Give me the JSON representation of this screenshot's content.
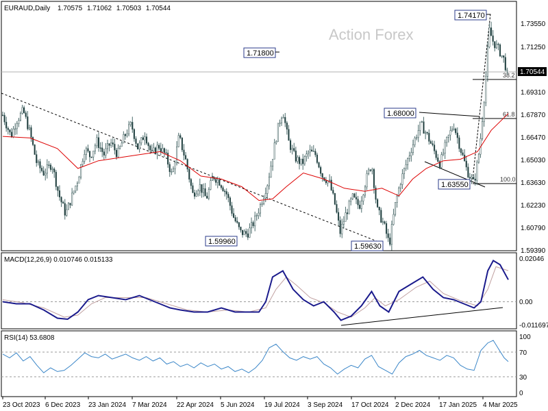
{
  "chart_data": {
    "type": "candlestick",
    "watermark": "Action Forex",
    "price_panel": {
      "title": "EURAUD,Daily",
      "ohlc": [
        "1.70575",
        "1.71062",
        "1.70503",
        "1.70544"
      ],
      "last_price": "1.70544",
      "ylim": [
        1.5939,
        1.7557
      ],
      "y_ticks": [
        "1.73550",
        "1.71250",
        "1.69310",
        "1.67870",
        "1.66470",
        "1.65030",
        "1.63630",
        "1.62230",
        "1.60790",
        "1.59390"
      ],
      "annotations": [
        "1.74170",
        "1.71800",
        "1.68000",
        "1.63550",
        "1.59960",
        "1.59630"
      ],
      "fib_levels": [
        {
          "label": "38.2",
          "value": 1.699
        },
        {
          "label": "61.8",
          "value": 1.678
        },
        {
          "label": "100.0",
          "value": 1.636
        }
      ],
      "moving_average_color": "#dd0000"
    },
    "macd_panel": {
      "title": "MACD(12,26,9) 0.010746 0.015133",
      "ylim": [
        -0.0125,
        0.0228
      ],
      "y_ticks": [
        "0.02046",
        "0.00",
        "-0.011697"
      ],
      "main_line_color": "#1a1a8c",
      "signal_line_color": "#c0a0a0"
    },
    "rsi_panel": {
      "title": "RSI(14) 53.6808",
      "ylim": [
        0,
        100
      ],
      "y_ticks": [
        "100",
        "70",
        "30",
        "0"
      ],
      "line_color": "#3a86c8"
    },
    "x_ticks": [
      "23 Oct 2023",
      "6 Dec 2023",
      "23 Jan 2024",
      "7 Mar 2024",
      "22 Apr 2024",
      "5 Jun 2024",
      "19 Jul 2024",
      "3 Sep 2024",
      "17 Oct 2024",
      "2 Dec 2024",
      "17 Jan 2025",
      "4 Mar 2025"
    ],
    "close_path": [
      [
        0,
        1.682
      ],
      [
        12,
        1.668
      ],
      [
        20,
        1.678
      ],
      [
        30,
        1.685
      ],
      [
        40,
        1.67
      ],
      [
        50,
        1.65
      ],
      [
        60,
        1.644
      ],
      [
        72,
        1.65
      ],
      [
        82,
        1.63
      ],
      [
        92,
        1.617
      ],
      [
        100,
        1.627
      ],
      [
        110,
        1.64
      ],
      [
        120,
        1.66
      ],
      [
        128,
        1.655
      ],
      [
        138,
        1.665
      ],
      [
        148,
        1.656
      ],
      [
        158,
        1.664
      ],
      [
        168,
        1.656
      ],
      [
        178,
        1.668
      ],
      [
        188,
        1.676
      ],
      [
        198,
        1.66
      ],
      [
        208,
        1.67
      ],
      [
        218,
        1.656
      ],
      [
        228,
        1.662
      ],
      [
        238,
        1.656
      ],
      [
        248,
        1.642
      ],
      [
        258,
        1.668
      ],
      [
        268,
        1.652
      ],
      [
        278,
        1.63
      ],
      [
        288,
        1.636
      ],
      [
        298,
        1.627
      ],
      [
        308,
        1.642
      ],
      [
        318,
        1.638
      ],
      [
        328,
        1.63
      ],
      [
        338,
        1.615
      ],
      [
        348,
        1.605
      ],
      [
        358,
        1.604
      ],
      [
        368,
        1.612
      ],
      [
        378,
        1.624
      ],
      [
        388,
        1.638
      ],
      [
        398,
        1.662
      ],
      [
        404,
        1.676
      ],
      [
        410,
        1.685
      ],
      [
        418,
        1.665
      ],
      [
        428,
        1.654
      ],
      [
        438,
        1.65
      ],
      [
        448,
        1.658
      ],
      [
        458,
        1.656
      ],
      [
        468,
        1.642
      ],
      [
        478,
        1.638
      ],
      [
        486,
        1.624
      ],
      [
        494,
        1.605
      ],
      [
        502,
        1.617
      ],
      [
        512,
        1.628
      ],
      [
        522,
        1.622
      ],
      [
        532,
        1.64
      ],
      [
        540,
        1.65
      ],
      [
        548,
        1.62
      ],
      [
        558,
        1.61
      ],
      [
        566,
        1.597
      ],
      [
        574,
        1.622
      ],
      [
        582,
        1.638
      ],
      [
        592,
        1.652
      ],
      [
        602,
        1.665
      ],
      [
        612,
        1.676
      ],
      [
        620,
        1.67
      ],
      [
        630,
        1.66
      ],
      [
        640,
        1.65
      ],
      [
        650,
        1.665
      ],
      [
        660,
        1.676
      ],
      [
        670,
        1.66
      ],
      [
        680,
        1.645
      ],
      [
        690,
        1.637
      ],
      [
        698,
        1.66
      ],
      [
        706,
        1.7
      ],
      [
        712,
        1.738
      ],
      [
        718,
        1.73
      ],
      [
        726,
        1.725
      ],
      [
        734,
        1.718
      ],
      [
        740,
        1.7054
      ]
    ],
    "ma_path": [
      [
        0,
        1.668
      ],
      [
        40,
        1.667
      ],
      [
        80,
        1.66
      ],
      [
        110,
        1.647
      ],
      [
        140,
        1.652
      ],
      [
        170,
        1.654
      ],
      [
        200,
        1.656
      ],
      [
        230,
        1.658
      ],
      [
        260,
        1.652
      ],
      [
        290,
        1.642
      ],
      [
        320,
        1.64
      ],
      [
        350,
        1.635
      ],
      [
        375,
        1.626
      ],
      [
        395,
        1.627
      ],
      [
        415,
        1.635
      ],
      [
        440,
        1.644
      ],
      [
        470,
        1.64
      ],
      [
        500,
        1.634
      ],
      [
        530,
        1.632
      ],
      [
        555,
        1.634
      ],
      [
        580,
        1.629
      ],
      [
        600,
        1.64
      ],
      [
        620,
        1.647
      ],
      [
        645,
        1.652
      ],
      [
        670,
        1.653
      ],
      [
        695,
        1.658
      ],
      [
        715,
        1.672
      ],
      [
        740,
        1.683
      ]
    ],
    "macd_path": [
      [
        0,
        0.0
      ],
      [
        20,
        -0.001
      ],
      [
        40,
        -0.001
      ],
      [
        60,
        -0.004
      ],
      [
        80,
        -0.008
      ],
      [
        95,
        -0.0085
      ],
      [
        110,
        -0.005
      ],
      [
        125,
        0.001
      ],
      [
        140,
        0.003
      ],
      [
        160,
        0.002
      ],
      [
        180,
        0.001
      ],
      [
        200,
        0.003
      ],
      [
        215,
        0.001
      ],
      [
        230,
        -0.001
      ],
      [
        245,
        -0.003
      ],
      [
        260,
        -0.004
      ],
      [
        280,
        -0.005
      ],
      [
        300,
        -0.005
      ],
      [
        320,
        -0.003
      ],
      [
        340,
        -0.005
      ],
      [
        360,
        -0.005
      ],
      [
        375,
        -0.005
      ],
      [
        385,
        0.0
      ],
      [
        395,
        0.012
      ],
      [
        410,
        0.015
      ],
      [
        425,
        0.006
      ],
      [
        440,
        0.001
      ],
      [
        455,
        -0.002
      ],
      [
        470,
        0.0
      ],
      [
        485,
        -0.005
      ],
      [
        495,
        -0.009
      ],
      [
        510,
        -0.007
      ],
      [
        525,
        -0.002
      ],
      [
        540,
        0.005
      ],
      [
        552,
        -0.002
      ],
      [
        565,
        -0.005
      ],
      [
        580,
        0.005
      ],
      [
        600,
        0.009
      ],
      [
        615,
        0.012
      ],
      [
        630,
        0.006
      ],
      [
        645,
        0.002
      ],
      [
        660,
        0.001
      ],
      [
        675,
        -0.001
      ],
      [
        690,
        -0.003
      ],
      [
        700,
        0.0
      ],
      [
        710,
        0.015
      ],
      [
        718,
        0.02
      ],
      [
        728,
        0.018
      ],
      [
        740,
        0.0107
      ]
    ],
    "signal_path": [
      [
        0,
        0.001
      ],
      [
        30,
        -0.0005
      ],
      [
        60,
        -0.003
      ],
      [
        90,
        -0.0075
      ],
      [
        110,
        -0.0065
      ],
      [
        130,
        -0.001
      ],
      [
        150,
        0.002
      ],
      [
        180,
        0.002
      ],
      [
        210,
        0.002
      ],
      [
        240,
        -0.001
      ],
      [
        270,
        -0.004
      ],
      [
        300,
        -0.005
      ],
      [
        330,
        -0.004
      ],
      [
        360,
        -0.005
      ],
      [
        385,
        -0.003
      ],
      [
        400,
        0.006
      ],
      [
        415,
        0.012
      ],
      [
        430,
        0.008
      ],
      [
        450,
        0.002
      ],
      [
        470,
        -0.0005
      ],
      [
        490,
        -0.005
      ],
      [
        510,
        -0.0075
      ],
      [
        530,
        -0.003
      ],
      [
        545,
        0.002
      ],
      [
        560,
        -0.002
      ],
      [
        580,
        0.001
      ],
      [
        605,
        0.007
      ],
      [
        625,
        0.01
      ],
      [
        645,
        0.004
      ],
      [
        670,
        0.0005
      ],
      [
        695,
        -0.002
      ],
      [
        710,
        0.006
      ],
      [
        722,
        0.017
      ],
      [
        740,
        0.0151
      ]
    ],
    "rsi_path": [
      [
        0,
        66
      ],
      [
        10,
        60
      ],
      [
        20,
        68
      ],
      [
        30,
        55
      ],
      [
        40,
        62
      ],
      [
        50,
        48
      ],
      [
        60,
        36
      ],
      [
        70,
        44
      ],
      [
        80,
        38
      ],
      [
        90,
        40
      ],
      [
        100,
        48
      ],
      [
        110,
        58
      ],
      [
        120,
        68
      ],
      [
        130,
        62
      ],
      [
        140,
        60
      ],
      [
        150,
        66
      ],
      [
        160,
        58
      ],
      [
        170,
        62
      ],
      [
        180,
        66
      ],
      [
        190,
        60
      ],
      [
        200,
        56
      ],
      [
        210,
        62
      ],
      [
        220,
        55
      ],
      [
        230,
        60
      ],
      [
        240,
        50
      ],
      [
        250,
        54
      ],
      [
        260,
        46
      ],
      [
        270,
        50
      ],
      [
        280,
        44
      ],
      [
        290,
        52
      ],
      [
        300,
        46
      ],
      [
        310,
        50
      ],
      [
        320,
        42
      ],
      [
        330,
        46
      ],
      [
        340,
        38
      ],
      [
        350,
        42
      ],
      [
        360,
        36
      ],
      [
        370,
        44
      ],
      [
        380,
        56
      ],
      [
        390,
        76
      ],
      [
        400,
        82
      ],
      [
        410,
        70
      ],
      [
        420,
        60
      ],
      [
        430,
        56
      ],
      [
        440,
        62
      ],
      [
        450,
        58
      ],
      [
        460,
        62
      ],
      [
        470,
        50
      ],
      [
        480,
        44
      ],
      [
        490,
        34
      ],
      [
        500,
        42
      ],
      [
        510,
        48
      ],
      [
        520,
        44
      ],
      [
        530,
        58
      ],
      [
        540,
        64
      ],
      [
        550,
        46
      ],
      [
        560,
        40
      ],
      [
        570,
        34
      ],
      [
        580,
        52
      ],
      [
        590,
        62
      ],
      [
        600,
        66
      ],
      [
        610,
        72
      ],
      [
        620,
        64
      ],
      [
        630,
        60
      ],
      [
        640,
        56
      ],
      [
        650,
        64
      ],
      [
        660,
        60
      ],
      [
        670,
        48
      ],
      [
        680,
        42
      ],
      [
        690,
        40
      ],
      [
        700,
        72
      ],
      [
        710,
        84
      ],
      [
        718,
        88
      ],
      [
        726,
        74
      ],
      [
        734,
        60
      ],
      [
        740,
        54
      ]
    ]
  }
}
